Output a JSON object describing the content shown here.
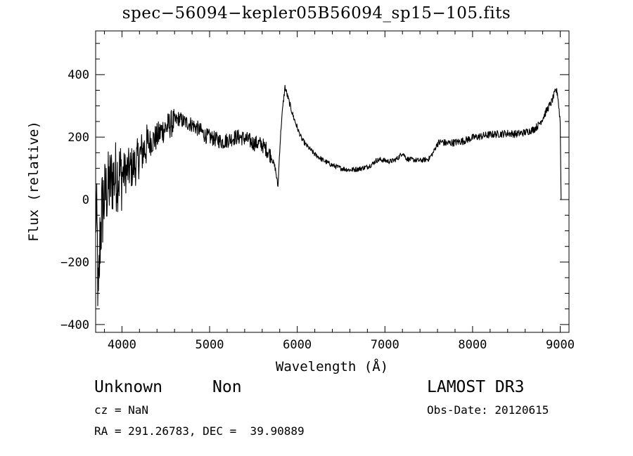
{
  "chart_data": {
    "type": "line",
    "title": "spec−56094−kepler05B56094_sp15−105.fits",
    "xlabel": "Wavelength (Å)",
    "ylabel": "Flux (relative)",
    "xlim": [
      3700,
      9100
    ],
    "ylim": [
      -425,
      540
    ],
    "x_ticks": [
      4000,
      5000,
      6000,
      7000,
      8000,
      9000
    ],
    "y_ticks": [
      -400,
      -200,
      0,
      200,
      400
    ],
    "x_tick_labels": [
      "4000",
      "5000",
      "6000",
      "7000",
      "8000",
      "9000"
    ],
    "y_tick_labels": [
      "−400",
      "−200",
      "0",
      "200",
      "400"
    ],
    "grid": false,
    "legend": "none",
    "line_color": "#000000",
    "series": [
      {
        "x": [
          3700,
          3720,
          3730,
          3740,
          3750,
          3760,
          3780,
          3800,
          3830,
          3860,
          3900,
          3950,
          4000,
          4050,
          4100,
          4150,
          4200,
          4250,
          4300,
          4350,
          4400,
          4450,
          4500,
          4550,
          4600,
          4650,
          4700,
          4750,
          4800,
          4850,
          4900,
          4950,
          5000,
          5050,
          5100,
          5150,
          5200,
          5250,
          5300,
          5350,
          5400,
          5450,
          5500,
          5550,
          5600,
          5650,
          5700,
          5750,
          5780,
          5800,
          5820,
          5840,
          5860,
          5880,
          5900,
          5920,
          5950,
          6000,
          6050,
          6100,
          6150,
          6200,
          6300,
          6400,
          6500,
          6600,
          6700,
          6800,
          6850,
          6900,
          6950,
          7000,
          7050,
          7100,
          7150,
          7200,
          7250,
          7300,
          7400,
          7500,
          7550,
          7600,
          7650,
          7700,
          7800,
          7900,
          8000,
          8100,
          8200,
          8300,
          8400,
          8500,
          8600,
          8700,
          8750,
          8800,
          8850,
          8900,
          8950,
          8970,
          9000,
          9010
        ],
        "y": [
          -20,
          -150,
          -380,
          -250,
          -120,
          -80,
          -20,
          10,
          30,
          50,
          70,
          80,
          80,
          90,
          100,
          110,
          140,
          160,
          180,
          190,
          200,
          220,
          230,
          240,
          250,
          260,
          250,
          245,
          240,
          230,
          220,
          205,
          200,
          195,
          190,
          185,
          190,
          195,
          200,
          200,
          195,
          190,
          180,
          180,
          175,
          160,
          140,
          100,
          40,
          160,
          250,
          310,
          360,
          340,
          320,
          300,
          270,
          230,
          195,
          175,
          160,
          145,
          125,
          110,
          100,
          95,
          98,
          105,
          112,
          125,
          128,
          125,
          122,
          125,
          133,
          150,
          130,
          128,
          125,
          130,
          150,
          180,
          185,
          180,
          183,
          188,
          198,
          203,
          208,
          210,
          212,
          210,
          215,
          225,
          238,
          260,
          288,
          312,
          350,
          340,
          250,
          0
        ]
      }
    ]
  },
  "annotations": {
    "class_label": "Unknown",
    "subclass_label": "Non",
    "survey": "LAMOST DR3",
    "cz_text": "cz = NaN",
    "obs_date_text": "Obs-Date: 20120615",
    "radec_text": "RA = 291.26783, DEC =  39.90889"
  }
}
